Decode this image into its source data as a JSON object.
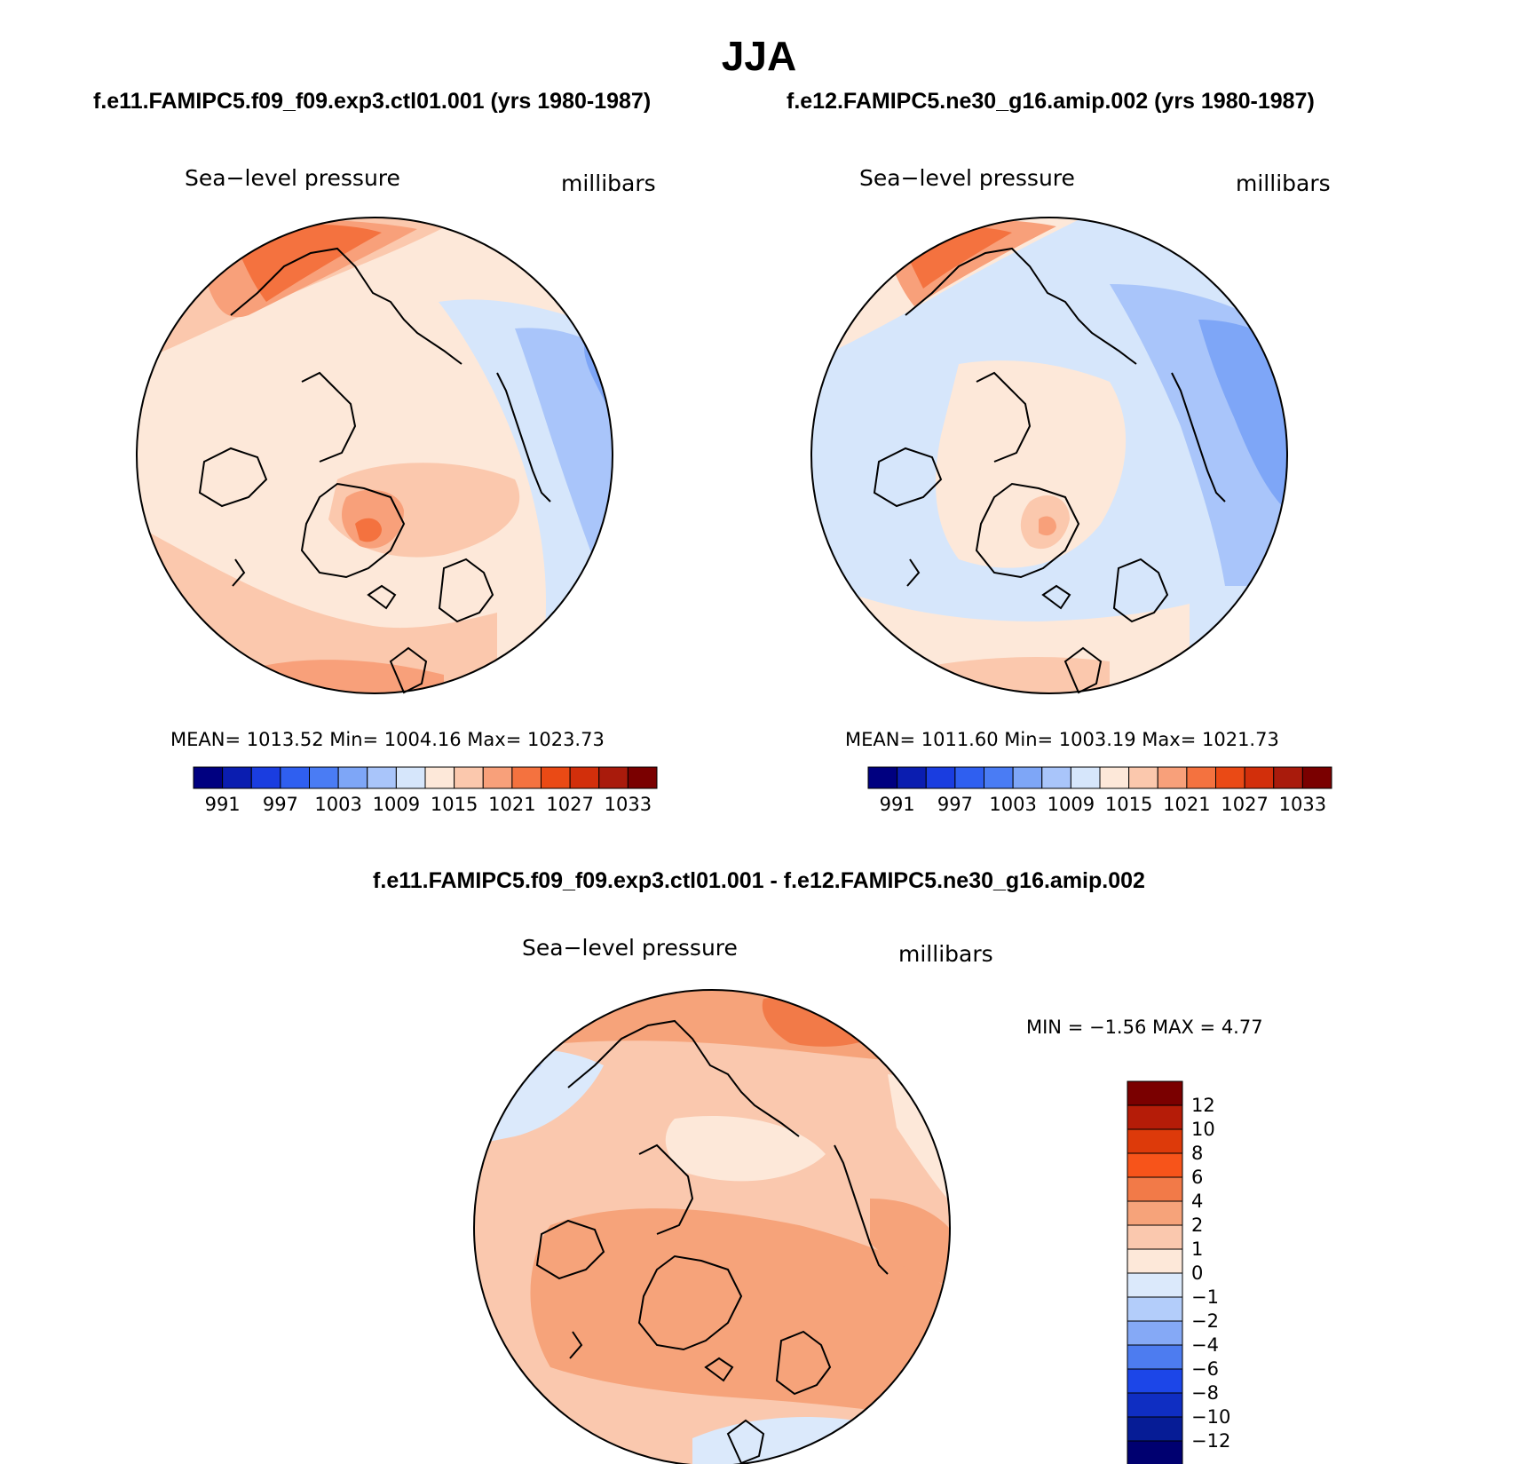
{
  "season": "JJA",
  "panels": [
    {
      "case_title": "f.e11.FAMIPC5.f09_f09.exp3.ctl01.001 (yrs 1980-1987)",
      "variable": "Sea−level pressure",
      "units": "millibars",
      "stats": "MEAN=  1013.52   Min=  1004.16   Max=  1023.73"
    },
    {
      "case_title": "f.e12.FAMIPC5.ne30_g16.amip.002 (yrs 1980-1987)",
      "variable": "Sea−level pressure",
      "units": "millibars",
      "stats": "MEAN=  1011.60   Min=  1003.19   Max=  1021.73"
    }
  ],
  "colorbar": {
    "ticks": [
      "991",
      "997",
      "1003",
      "1009",
      "1015",
      "1021",
      "1027",
      "1033"
    ],
    "colors": [
      "#000080",
      "#0a1db0",
      "#1a3de0",
      "#2f5ff0",
      "#4a7cf4",
      "#7ea6f7",
      "#a9c5fa",
      "#d6e6fb",
      "#fde8d9",
      "#fbc8ad",
      "#f8a07a",
      "#f4723f",
      "#ea4a15",
      "#d22f0b",
      "#a91b0c",
      "#7a0000"
    ]
  },
  "difference": {
    "title": "f.e11.FAMIPC5.f09_f09.exp3.ctl01.001 - f.e12.FAMIPC5.ne30_g16.amip.002",
    "variable": "Sea−level pressure",
    "units": "millibars",
    "stats": "MIN =   −1.56  MAX =    4.77",
    "levels": [
      "12",
      "10",
      "8",
      "6",
      "4",
      "2",
      "1",
      "0",
      "−1",
      "−2",
      "−4",
      "−6",
      "−8",
      "−10",
      "−12"
    ],
    "colors": [
      "#7a0000",
      "#b51c08",
      "#dd3a0a",
      "#f7541a",
      "#f27a48",
      "#f6a37a",
      "#fac8ae",
      "#fde8d9",
      "#dbe9fb",
      "#b3cdfa",
      "#85a9f6",
      "#4d7cf0",
      "#1c46e8",
      "#0f2ec2",
      "#061c96",
      "#000070"
    ]
  },
  "map_colors": {
    "outline": "#000000",
    "coast": "#000000"
  }
}
